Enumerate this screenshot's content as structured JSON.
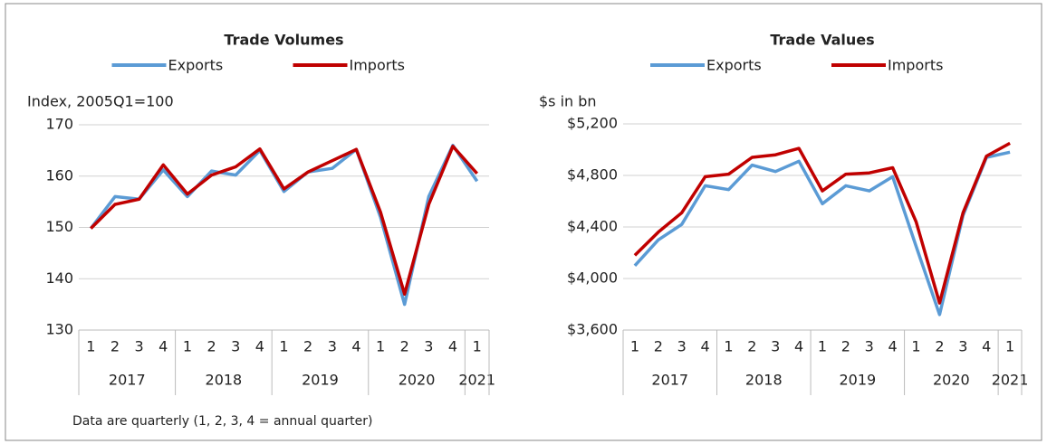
{
  "chart_data": [
    {
      "type": "line",
      "title": "Trade Volumes",
      "y_label": "Index, 2005Q1=100",
      "categories": [
        "1",
        "2",
        "3",
        "4",
        "1",
        "2",
        "3",
        "4",
        "1",
        "2",
        "3",
        "4",
        "1",
        "2",
        "3",
        "4",
        "1"
      ],
      "groups": [
        "2017",
        "2018",
        "2019",
        "2020",
        "2021"
      ],
      "series": [
        {
          "name": "Exports",
          "color": "#5b9bd5",
          "values": [
            149.8,
            156,
            155.5,
            161.2,
            156,
            161,
            160.2,
            165,
            157,
            160.8,
            161.5,
            165.2,
            152,
            135,
            156,
            166,
            159
          ]
        },
        {
          "name": "Imports",
          "color": "#c00000",
          "values": [
            149.8,
            154.5,
            155.5,
            162.2,
            156.5,
            160.2,
            161.8,
            165.3,
            157.5,
            160.8,
            163,
            165.2,
            153,
            137,
            154.5,
            165.8,
            160.5
          ]
        }
      ],
      "ylim": [
        130,
        170
      ],
      "yticks": [
        130,
        140,
        150,
        160,
        170
      ],
      "grid": true,
      "legend": "top"
    },
    {
      "type": "line",
      "title": "Trade Values",
      "y_label": "$s in bn",
      "categories": [
        "1",
        "2",
        "3",
        "4",
        "1",
        "2",
        "3",
        "4",
        "1",
        "2",
        "3",
        "4",
        "1",
        "2",
        "3",
        "4",
        "1"
      ],
      "groups": [
        "2017",
        "2018",
        "2019",
        "2020",
        "2021"
      ],
      "series": [
        {
          "name": "Exports",
          "color": "#5b9bd5",
          "values": [
            4100,
            4300,
            4420,
            4720,
            4690,
            4880,
            4830,
            4910,
            4580,
            4720,
            4680,
            4790,
            4250,
            3720,
            4490,
            4940,
            4980
          ]
        },
        {
          "name": "Imports",
          "color": "#c00000",
          "values": [
            4180,
            4360,
            4510,
            4790,
            4810,
            4940,
            4960,
            5010,
            4680,
            4810,
            4820,
            4860,
            4440,
            3810,
            4510,
            4950,
            5050
          ]
        }
      ],
      "ylim": [
        3600,
        5200
      ],
      "yticks": [
        {
          "value": 3600,
          "label": "$3,600"
        },
        {
          "value": 4000,
          "label": "$4,000"
        },
        {
          "value": 4400,
          "label": "$4,400"
        },
        {
          "value": 4800,
          "label": "$4,800"
        },
        {
          "value": 5200,
          "label": "$5,200"
        }
      ],
      "grid": true,
      "legend": "top"
    }
  ],
  "footnote": "Data are quarterly (1, 2, 3, 4 = annual quarter)"
}
